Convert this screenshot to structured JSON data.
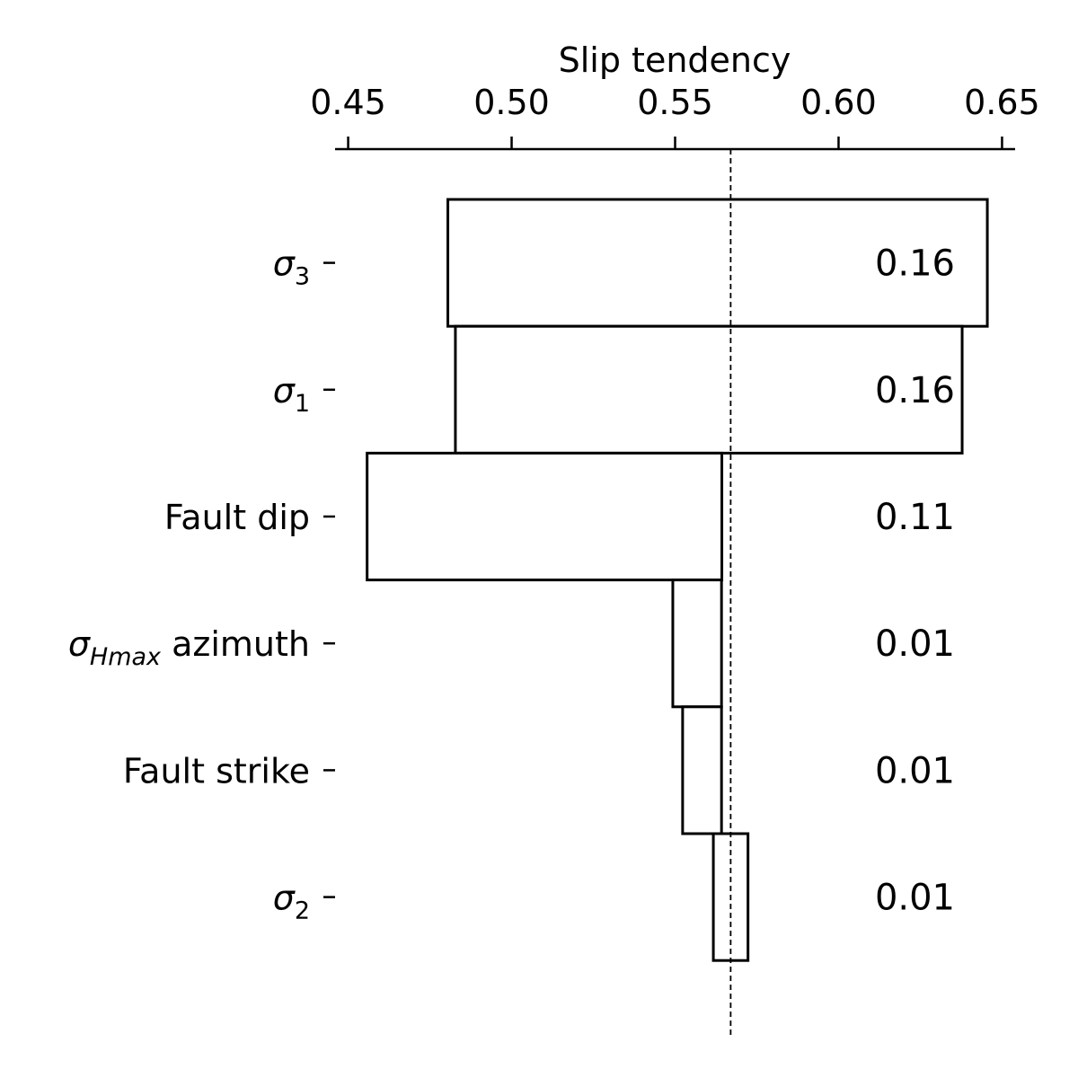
{
  "chart_data": {
    "type": "bar",
    "subtype": "tornado",
    "orientation": "horizontal",
    "xlabel": "Slip tendency",
    "xaxis_position": "top",
    "xlim": [
      0.446,
      0.654
    ],
    "xticks": [
      0.45,
      0.5,
      0.55,
      0.6,
      0.65
    ],
    "xtick_labels": [
      "0.45",
      "0.50",
      "0.55",
      "0.60",
      "0.65"
    ],
    "reference_value": 0.567,
    "grid": false,
    "legend": "none",
    "colors": {
      "bar_fill": "#ffffff",
      "bar_edge": "#000000",
      "reference_line": "#000000"
    },
    "categories": [
      {
        "label": {
          "base": "σ",
          "sub": "3",
          "rest": ""
        },
        "low": 0.4805,
        "high": 0.6455,
        "value_label": "0.16"
      },
      {
        "label": {
          "base": "σ",
          "sub": "1",
          "rest": ""
        },
        "low": 0.4828,
        "high": 0.6378,
        "value_label": "0.16"
      },
      {
        "label": {
          "base": "Fault dip",
          "sub": "",
          "rest": ""
        },
        "low": 0.4558,
        "high": 0.5643,
        "value_label": "0.11"
      },
      {
        "label": {
          "base": "σ",
          "sub": "Hmax",
          "rest": " azimuth"
        },
        "low": 0.5493,
        "high": 0.5642,
        "value_label": "0.01"
      },
      {
        "label": {
          "base": "Fault strike",
          "sub": "",
          "rest": ""
        },
        "low": 0.5523,
        "high": 0.5642,
        "value_label": "0.01"
      },
      {
        "label": {
          "base": "σ",
          "sub": "2",
          "rest": ""
        },
        "low": 0.5617,
        "high": 0.5723,
        "value_label": "0.01"
      }
    ]
  }
}
